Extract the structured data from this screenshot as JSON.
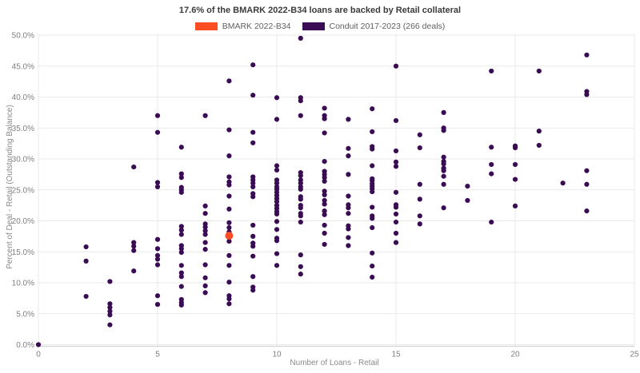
{
  "chart_data": {
    "type": "scatter",
    "title": "17.6% of the BMARK 2022-B34 loans are backed by Retail collateral",
    "xlabel": "Number of Loans - Retail",
    "ylabel": "Percent of Deal - Retail (Outstanding Balance)",
    "xlim": [
      0,
      25
    ],
    "ylim": [
      0,
      50
    ],
    "grid": true,
    "legend_position": "top-center",
    "x_tick_values": [
      0,
      5,
      10,
      15,
      20,
      25
    ],
    "x_tick_labels": [
      "0",
      "5",
      "10",
      "15",
      "20",
      "25"
    ],
    "y_tick_values": [
      0,
      5,
      10,
      15,
      20,
      25,
      30,
      35,
      40,
      45,
      50
    ],
    "y_tick_labels": [
      "0.0%",
      "5.0%",
      "10.0%",
      "15.0%",
      "20.0%",
      "25.0%",
      "30.0%",
      "35.0%",
      "40.0%",
      "45.0%",
      "50.0%"
    ],
    "colors": {
      "background": "#ffffff",
      "gridline": "#e9e9e9",
      "axis_line": "#cccccc",
      "tick_text": "#7f7f7f"
    },
    "series": [
      {
        "name": "BMARK 2022-B34",
        "color": "#fb4d23",
        "marker_radius": 5,
        "points": [
          [
            8,
            17.6
          ]
        ]
      },
      {
        "name": "Conduit 2017-2023 (266 deals)",
        "color": "#3a0c54",
        "marker_radius": 3.1,
        "points": [
          [
            0,
            0
          ],
          [
            2,
            15.8
          ],
          [
            2,
            13.5
          ],
          [
            2,
            7.8
          ],
          [
            3,
            10.2
          ],
          [
            3,
            6.6
          ],
          [
            3,
            6
          ],
          [
            3,
            5.4
          ],
          [
            3,
            4.8
          ],
          [
            3,
            3.2
          ],
          [
            4,
            28.7
          ],
          [
            4,
            16.5
          ],
          [
            4,
            15.9
          ],
          [
            4,
            15.2
          ],
          [
            4,
            11.9
          ],
          [
            5,
            37
          ],
          [
            5,
            34.3
          ],
          [
            5,
            26.2
          ],
          [
            5,
            25.5
          ],
          [
            5,
            17
          ],
          [
            5,
            15.5
          ],
          [
            5,
            14.4
          ],
          [
            5,
            13.8
          ],
          [
            5,
            12.9
          ],
          [
            5,
            7.9
          ],
          [
            5,
            6.5
          ],
          [
            6,
            31.9
          ],
          [
            6,
            27.6
          ],
          [
            6,
            27
          ],
          [
            6,
            25.4
          ],
          [
            6,
            25
          ],
          [
            6,
            24.6
          ],
          [
            6,
            19.1
          ],
          [
            6,
            18.5
          ],
          [
            6,
            17.8
          ],
          [
            6,
            16
          ],
          [
            6,
            15.5
          ],
          [
            6,
            14.9
          ],
          [
            6,
            12.8
          ],
          [
            6,
            11.6
          ],
          [
            6,
            11
          ],
          [
            6,
            9.4
          ],
          [
            6,
            7.3
          ],
          [
            6,
            6.8
          ],
          [
            6,
            6.4
          ],
          [
            7,
            37
          ],
          [
            7,
            22.4
          ],
          [
            7,
            21.2
          ],
          [
            7,
            19.5
          ],
          [
            7,
            19
          ],
          [
            7,
            18.4
          ],
          [
            7,
            17.8
          ],
          [
            7,
            16.5
          ],
          [
            7,
            15.4
          ],
          [
            7,
            12.9
          ],
          [
            7,
            10.8
          ],
          [
            7,
            9.5
          ],
          [
            7,
            8.4
          ],
          [
            8,
            42.6
          ],
          [
            8,
            34.7
          ],
          [
            8,
            30.5
          ],
          [
            8,
            27.1
          ],
          [
            8,
            26.3
          ],
          [
            8,
            25.8
          ],
          [
            8,
            24
          ],
          [
            8,
            21.9
          ],
          [
            8,
            19.7
          ],
          [
            8,
            18.9
          ],
          [
            8,
            18.2
          ],
          [
            8,
            16.7
          ],
          [
            8,
            14.4
          ],
          [
            8,
            12.8
          ],
          [
            8,
            10.1
          ],
          [
            8,
            7.9
          ],
          [
            8,
            7.4
          ],
          [
            8,
            6.6
          ],
          [
            9,
            45.2
          ],
          [
            9,
            40.3
          ],
          [
            9,
            34.3
          ],
          [
            9,
            32.6
          ],
          [
            9,
            27.1
          ],
          [
            9,
            26.6
          ],
          [
            9,
            26.1
          ],
          [
            9,
            25.5
          ],
          [
            9,
            24.4
          ],
          [
            9,
            23.9
          ],
          [
            9,
            19.3
          ],
          [
            9,
            17.5
          ],
          [
            9,
            16.4
          ],
          [
            9,
            15.9
          ],
          [
            9,
            14.3
          ],
          [
            9,
            11
          ],
          [
            9,
            9.3
          ],
          [
            9,
            8.8
          ],
          [
            10,
            39.9
          ],
          [
            10,
            36.4
          ],
          [
            10,
            28.9
          ],
          [
            10,
            28.2
          ],
          [
            10,
            26.6
          ],
          [
            10,
            26.1
          ],
          [
            10,
            25.5
          ],
          [
            10,
            25.1
          ],
          [
            10,
            24.6
          ],
          [
            10,
            24.1
          ],
          [
            10,
            23.6
          ],
          [
            10,
            23.1
          ],
          [
            10,
            22.5
          ],
          [
            10,
            22
          ],
          [
            10,
            21.5
          ],
          [
            10,
            21.1
          ],
          [
            10,
            19.9
          ],
          [
            10,
            18.6
          ],
          [
            10,
            17.2
          ],
          [
            10,
            16.8
          ],
          [
            10,
            14.7
          ],
          [
            10,
            12.8
          ],
          [
            11,
            49.5
          ],
          [
            11,
            39.9
          ],
          [
            11,
            39.4
          ],
          [
            11,
            37
          ],
          [
            11,
            27.8
          ],
          [
            11,
            27.3
          ],
          [
            11,
            26.6
          ],
          [
            11,
            26.1
          ],
          [
            11,
            25.5
          ],
          [
            11,
            25.1
          ],
          [
            11,
            23.9
          ],
          [
            11,
            23.5
          ],
          [
            11,
            22.5
          ],
          [
            11,
            22.1
          ],
          [
            11,
            21.2
          ],
          [
            11,
            20.8
          ],
          [
            11,
            19.8
          ],
          [
            11,
            14.5
          ],
          [
            11,
            12.6
          ],
          [
            11,
            11.4
          ],
          [
            12,
            38.2
          ],
          [
            12,
            37
          ],
          [
            12,
            36.5
          ],
          [
            12,
            34.2
          ],
          [
            12,
            29.6
          ],
          [
            12,
            28
          ],
          [
            12,
            27.5
          ],
          [
            12,
            27
          ],
          [
            12,
            26.4
          ],
          [
            12,
            24.8
          ],
          [
            12,
            24.2
          ],
          [
            12,
            23.3
          ],
          [
            12,
            22.7
          ],
          [
            12,
            21.6
          ],
          [
            12,
            21
          ],
          [
            12,
            19.3
          ],
          [
            12,
            18
          ],
          [
            12,
            16.2
          ],
          [
            13,
            36.4
          ],
          [
            13,
            31.7
          ],
          [
            13,
            30.5
          ],
          [
            13,
            27.5
          ],
          [
            13,
            24
          ],
          [
            13,
            22.6
          ],
          [
            13,
            22.1
          ],
          [
            13,
            21.2
          ],
          [
            13,
            19.2
          ],
          [
            13,
            18.7
          ],
          [
            13,
            17.3
          ],
          [
            13,
            16
          ],
          [
            14,
            38.1
          ],
          [
            14,
            34.4
          ],
          [
            14,
            32
          ],
          [
            14,
            31.6
          ],
          [
            14,
            28.9
          ],
          [
            14,
            26.8
          ],
          [
            14,
            26.5
          ],
          [
            14,
            26
          ],
          [
            14,
            25.6
          ],
          [
            14,
            25.2
          ],
          [
            14,
            24.7
          ],
          [
            14,
            22.2
          ],
          [
            14,
            20.8
          ],
          [
            14,
            20.4
          ],
          [
            14,
            18.9
          ],
          [
            14,
            14.8
          ],
          [
            14,
            12.7
          ],
          [
            14,
            10.9
          ],
          [
            15,
            45
          ],
          [
            15,
            36.2
          ],
          [
            15,
            31.3
          ],
          [
            15,
            29.5
          ],
          [
            15,
            28.8
          ],
          [
            15,
            24.6
          ],
          [
            15,
            22.6
          ],
          [
            15,
            22.2
          ],
          [
            15,
            21.1
          ],
          [
            15,
            19.8
          ],
          [
            15,
            18
          ],
          [
            15,
            16.5
          ],
          [
            16,
            33.9
          ],
          [
            16,
            31.8
          ],
          [
            16,
            25.9
          ],
          [
            16,
            23.5
          ],
          [
            16,
            20.8
          ],
          [
            16,
            19.5
          ],
          [
            17,
            37.5
          ],
          [
            17,
            35
          ],
          [
            17,
            34.6
          ],
          [
            17,
            30.3
          ],
          [
            17,
            29.6
          ],
          [
            17,
            29.2
          ],
          [
            17,
            28.5
          ],
          [
            17,
            28.1
          ],
          [
            17,
            27.2
          ],
          [
            17,
            25.9
          ],
          [
            17,
            22.1
          ],
          [
            18,
            25.6
          ],
          [
            18,
            23.3
          ],
          [
            19,
            44.2
          ],
          [
            19,
            31.9
          ],
          [
            19,
            29.1
          ],
          [
            19,
            27.6
          ],
          [
            19,
            19.8
          ],
          [
            20,
            32.1
          ],
          [
            20,
            31.8
          ],
          [
            20,
            29.1
          ],
          [
            20,
            26.7
          ],
          [
            20,
            22.4
          ],
          [
            21,
            44.2
          ],
          [
            21,
            34.5
          ],
          [
            21,
            32.2
          ],
          [
            22,
            26.1
          ],
          [
            23,
            46.8
          ],
          [
            23,
            40.9
          ],
          [
            23,
            40.4
          ],
          [
            23,
            28.1
          ],
          [
            23,
            25.9
          ],
          [
            23,
            21.6
          ]
        ]
      }
    ]
  }
}
